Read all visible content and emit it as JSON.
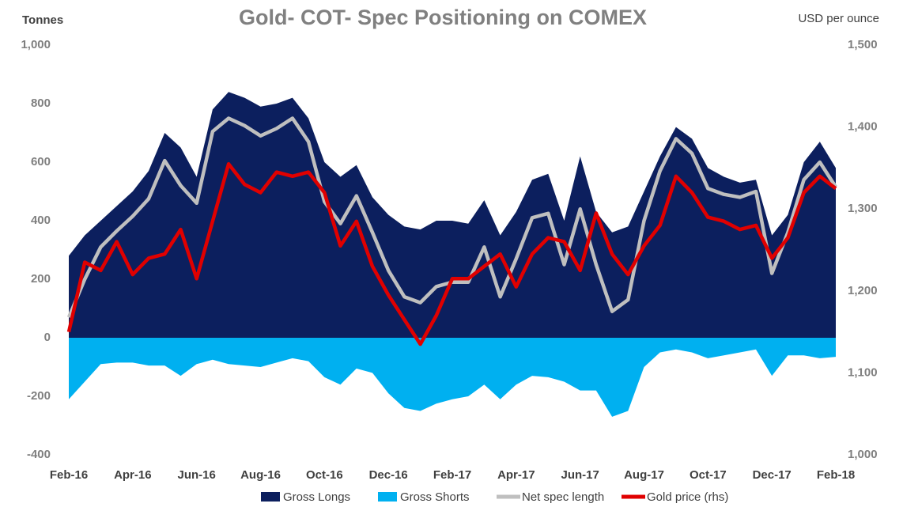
{
  "chart_data": {
    "type": "combo",
    "title": "Gold- COT- Spec Positioning on COMEX",
    "y_label": "Tonnes",
    "y2_label": "USD per ounce",
    "categories": [
      "Feb-16",
      null,
      null,
      null,
      "Apr-16",
      null,
      null,
      null,
      "Jun-16",
      null,
      null,
      null,
      "Aug-16",
      null,
      null,
      null,
      "Oct-16",
      null,
      null,
      null,
      "Dec-16",
      null,
      null,
      null,
      "Feb-17",
      null,
      null,
      null,
      "Apr-17",
      null,
      null,
      null,
      "Jun-17",
      null,
      null,
      null,
      "Aug-17",
      null,
      null,
      null,
      "Oct-17",
      null,
      null,
      null,
      "Dec-17",
      null,
      null,
      null,
      "Feb-18"
    ],
    "series": [
      {
        "name": "Gross Longs",
        "type": "area",
        "color": "#0c1f5e",
        "values": [
          280,
          350,
          400,
          450,
          500,
          570,
          700,
          650,
          550,
          780,
          840,
          820,
          790,
          800,
          820,
          750,
          600,
          550,
          590,
          480,
          420,
          380,
          370,
          400,
          400,
          390,
          470,
          350,
          430,
          540,
          560,
          400,
          620,
          430,
          360,
          380,
          500,
          620,
          720,
          680,
          580,
          550,
          530,
          540,
          350,
          420,
          600,
          670,
          580
        ]
      },
      {
        "name": "Gross Shorts",
        "type": "area",
        "color": "#00b0f0",
        "values": [
          -210,
          -150,
          -90,
          -85,
          -85,
          -95,
          -95,
          -130,
          -90,
          -75,
          -90,
          -95,
          -100,
          -85,
          -70,
          -80,
          -135,
          -160,
          -105,
          -120,
          -190,
          -240,
          -250,
          -225,
          -210,
          -200,
          -160,
          -210,
          -160,
          -130,
          -135,
          -150,
          -180,
          -180,
          -270,
          -250,
          -100,
          -50,
          -40,
          -50,
          -70,
          -60,
          -50,
          -40,
          -130,
          -60,
          -60,
          -70,
          -65
        ]
      },
      {
        "name": "Net spec length",
        "type": "line",
        "color": "#bfbfbf",
        "values": [
          70,
          200,
          310,
          365,
          415,
          475,
          605,
          520,
          460,
          705,
          750,
          725,
          690,
          715,
          750,
          670,
          465,
          390,
          485,
          360,
          230,
          140,
          120,
          175,
          190,
          190,
          310,
          140,
          270,
          410,
          425,
          250,
          440,
          250,
          90,
          130,
          400,
          570,
          680,
          630,
          510,
          490,
          480,
          500,
          220,
          360,
          540,
          600,
          515
        ]
      },
      {
        "name": "Gold price (rhs)",
        "type": "line",
        "axis": "y2",
        "color": "#e00000",
        "values": [
          1150,
          1235,
          1225,
          1260,
          1220,
          1240,
          1245,
          1275,
          1215,
          1285,
          1355,
          1330,
          1320,
          1345,
          1340,
          1345,
          1320,
          1255,
          1285,
          1230,
          1195,
          1165,
          1135,
          1170,
          1215,
          1215,
          1230,
          1245,
          1205,
          1245,
          1265,
          1260,
          1225,
          1295,
          1245,
          1220,
          1255,
          1280,
          1340,
          1320,
          1290,
          1285,
          1275,
          1280,
          1240,
          1265,
          1320,
          1340,
          1325
        ]
      }
    ],
    "ylim": [
      -400,
      1000
    ],
    "yticks": [
      -400,
      -200,
      0,
      200,
      400,
      600,
      800,
      {
        "value": 1000,
        "label": "1,000"
      }
    ],
    "y2lim": [
      1000,
      1500
    ],
    "y2ticks": [
      {
        "value": 1000,
        "label": "1,000"
      },
      {
        "value": 1100,
        "label": "1,100"
      },
      {
        "value": 1200,
        "label": "1,200"
      },
      {
        "value": 1300,
        "label": "1,300"
      },
      {
        "value": 1400,
        "label": "1,400"
      },
      {
        "value": 1500,
        "label": "1,500"
      }
    ],
    "legend": "bottom"
  }
}
